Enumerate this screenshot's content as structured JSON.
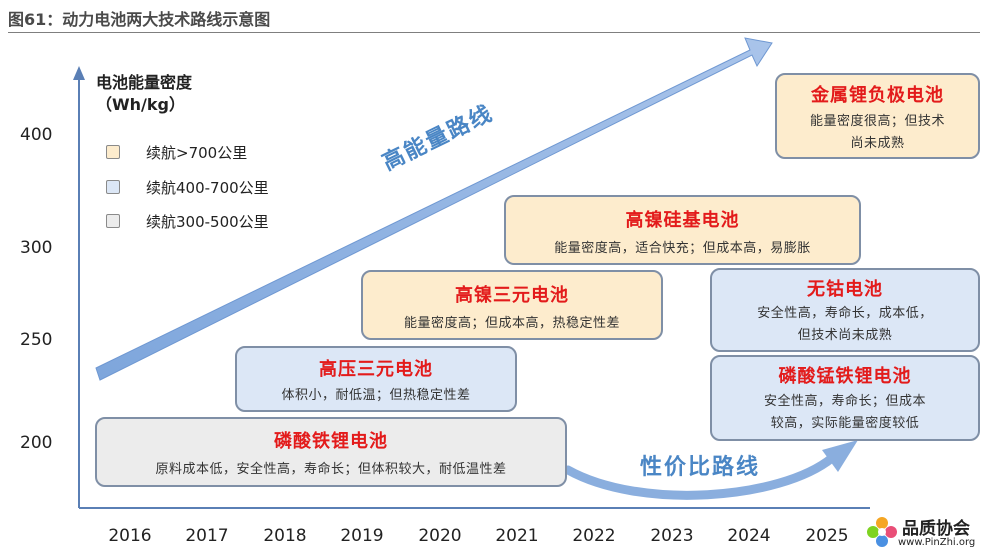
{
  "figure_title": "图61：动力电池两大技术路线示意图",
  "colors": {
    "yellow_fill": "#fdeccd",
    "blue_fill": "#dce7f6",
    "gray_fill": "#ececec",
    "box_border": "#7f8fa6",
    "title_red": "#e31b1b",
    "arrow_blue": "#8aaede",
    "route_text": "#4a86c5"
  },
  "axis": {
    "ylabel_line1": "电池能量密度",
    "ylabel_line2": "（Wh/kg）",
    "y_ticks": [
      "400",
      "300",
      "250",
      "200"
    ],
    "x_ticks": [
      "2016",
      "2017",
      "2018",
      "2019",
      "2020",
      "2021",
      "2022",
      "2023",
      "2024",
      "2025"
    ]
  },
  "legend": [
    {
      "label": "续航>700公里",
      "color": "#fdeccd"
    },
    {
      "label": "续航400-700公里",
      "color": "#dce7f6"
    },
    {
      "label": "续航300-500公里",
      "color": "#ececec"
    }
  ],
  "routes": {
    "high_energy": "高能量路线",
    "cost_performance": "性价比路线"
  },
  "boxes": {
    "lfp": {
      "title": "磷酸铁锂电池",
      "desc1": "原料成本低，安全性高，寿命长；但体积较大，耐低温性差"
    },
    "hv_ternary": {
      "title": "高压三元电池",
      "desc1": "体积小，耐低温；但热稳定性差"
    },
    "high_ni": {
      "title": "高镍三元电池",
      "desc1": "能量密度高；但成本高，热稳定性差"
    },
    "si": {
      "title": "高镍硅基电池",
      "desc1": "能量密度高，适合快充；但成本高，易膨胀"
    },
    "li_metal": {
      "title": "金属锂负极电池",
      "desc1": "能量密度很高；但技术",
      "desc2": "尚未成熟"
    },
    "co_free": {
      "title": "无钴电池",
      "desc1": "安全性高，寿命长，成本低，",
      "desc2": "但技术尚未成熟"
    },
    "lmfp": {
      "title": "磷酸锰铁锂电池",
      "desc1": "安全性高，寿命长；但成本",
      "desc2": "较高，实际能量密度较低"
    }
  },
  "logo": {
    "name": "品质协会",
    "url": "www.PinZhi.org"
  }
}
